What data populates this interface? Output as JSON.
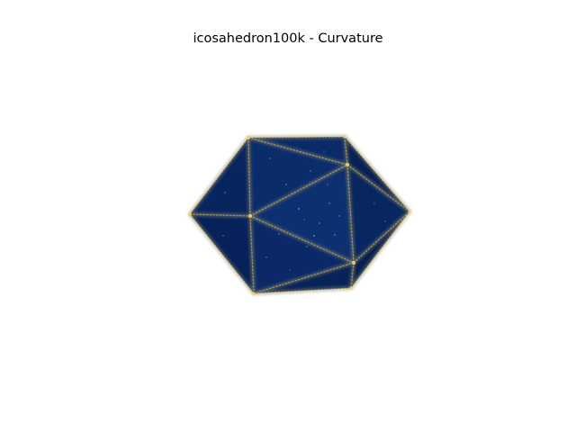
{
  "figure": {
    "title": "icosahedron100k - Curvature"
  },
  "colors": {
    "background": "#ffffff",
    "face": "#0b2a66",
    "face_dark": "#071f52",
    "face_light": "#12367a",
    "edge_highlight": "#e8c15a",
    "speckle": "#9fb6d8"
  }
}
